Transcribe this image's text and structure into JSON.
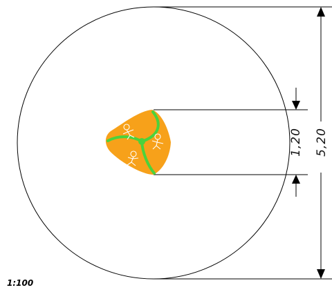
{
  "dimensions": {
    "inner": "1,20",
    "outer": "5,20"
  },
  "scale": "1:100",
  "colors": {
    "line": "#000000",
    "element_fill": "#f7a11a",
    "element_stripe": "#4bd23c",
    "figure": "#ffffff"
  }
}
